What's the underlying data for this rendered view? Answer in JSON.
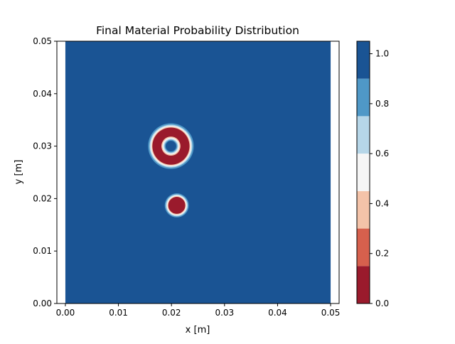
{
  "chart_data": {
    "type": "heatmap",
    "title": "Final Material Probability Distribution",
    "xlabel": "x [m]",
    "ylabel": "y [m]",
    "xlim": [
      -0.0016,
      0.0516
    ],
    "ylim": [
      0.0,
      0.05
    ],
    "data_extent": {
      "x": [
        0.0,
        0.05
      ],
      "y": [
        0.0,
        0.05
      ]
    },
    "x_ticks": [
      {
        "value": 0.0,
        "label": "0.00"
      },
      {
        "value": 0.01,
        "label": "0.01"
      },
      {
        "value": 0.02,
        "label": "0.02"
      },
      {
        "value": 0.03,
        "label": "0.03"
      },
      {
        "value": 0.04,
        "label": "0.04"
      },
      {
        "value": 0.05,
        "label": "0.05"
      }
    ],
    "y_ticks": [
      {
        "value": 0.0,
        "label": "0.00"
      },
      {
        "value": 0.01,
        "label": "0.01"
      },
      {
        "value": 0.02,
        "label": "0.02"
      },
      {
        "value": 0.03,
        "label": "0.03"
      },
      {
        "value": 0.04,
        "label": "0.04"
      },
      {
        "value": 0.05,
        "label": "0.05"
      }
    ],
    "colorbar": {
      "colormap": "RdBu",
      "levels": [
        0.0,
        0.15,
        0.3,
        0.45,
        0.6,
        0.75,
        0.9,
        1.05
      ],
      "colors": [
        "#9a1a2c",
        "#d6604d",
        "#f4c3a9",
        "#f6f6f6",
        "#b6d6e8",
        "#4f98c7",
        "#1a5494"
      ],
      "ticks": [
        {
          "value": 0.0,
          "label": "0.0"
        },
        {
          "value": 0.2,
          "label": "0.2"
        },
        {
          "value": 0.4,
          "label": "0.4"
        },
        {
          "value": 0.6,
          "label": "0.6"
        },
        {
          "value": 0.8,
          "label": "0.8"
        },
        {
          "value": 1.0,
          "label": "1.0"
        }
      ]
    },
    "background_value": 1.0,
    "features": [
      {
        "kind": "ring",
        "center": [
          0.0199,
          0.03
        ],
        "inner_radius": 0.0014,
        "outer_radius": 0.0035,
        "min_value": 0.0
      },
      {
        "kind": "blob",
        "center": [
          0.021,
          0.0187
        ],
        "radius": 0.0016,
        "min_value": 0.0
      }
    ]
  }
}
